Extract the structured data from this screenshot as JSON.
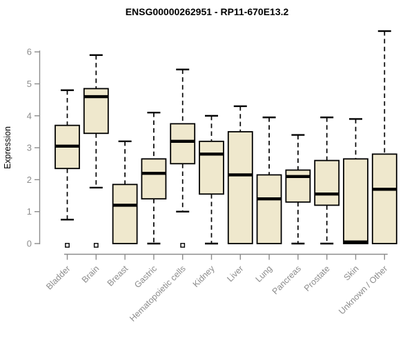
{
  "chart_data": {
    "type": "boxplot",
    "title": "ENSG00000262951 - RP11-670E13.2",
    "ylabel": "Expression",
    "xlabel": "",
    "ylim": [
      0,
      6
    ],
    "yticks": [
      0,
      1,
      2,
      3,
      4,
      5,
      6
    ],
    "grid": false,
    "legend": false,
    "categories": [
      "Bladder",
      "Brain",
      "Breast",
      "Gastric",
      "Hematopoietic cells",
      "Kidney",
      "Liver",
      "Lung",
      "Pancreas",
      "Prostate",
      "Skin",
      "Unknown / Other"
    ],
    "boxes": [
      {
        "category": "Bladder",
        "whisker_low": 0.75,
        "q1": 2.35,
        "median": 3.05,
        "q3": 3.7,
        "whisker_high": 4.8,
        "outliers": [
          0
        ]
      },
      {
        "category": "Brain",
        "whisker_low": 1.75,
        "q1": 3.45,
        "median": 4.6,
        "q3": 4.85,
        "whisker_high": 5.9,
        "outliers": [
          0
        ]
      },
      {
        "category": "Breast",
        "whisker_low": 0,
        "q1": 0,
        "median": 1.2,
        "q3": 1.85,
        "whisker_high": 3.2,
        "outliers": []
      },
      {
        "category": "Gastric",
        "whisker_low": 0,
        "q1": 1.4,
        "median": 2.2,
        "q3": 2.65,
        "whisker_high": 4.1,
        "outliers": []
      },
      {
        "category": "Hematopoietic cells",
        "whisker_low": 1.0,
        "q1": 2.5,
        "median": 3.2,
        "q3": 3.75,
        "whisker_high": 5.45,
        "outliers": [
          0
        ]
      },
      {
        "category": "Kidney",
        "whisker_low": 0,
        "q1": 1.55,
        "median": 2.8,
        "q3": 3.2,
        "whisker_high": 4.0,
        "outliers": []
      },
      {
        "category": "Liver",
        "whisker_low": 0,
        "q1": 0,
        "median": 2.15,
        "q3": 3.5,
        "whisker_high": 4.3,
        "outliers": []
      },
      {
        "category": "Lung",
        "whisker_low": 0,
        "q1": 0,
        "median": 1.4,
        "q3": 2.15,
        "whisker_high": 3.95,
        "outliers": []
      },
      {
        "category": "Pancreas",
        "whisker_low": 0,
        "q1": 1.3,
        "median": 2.1,
        "q3": 2.3,
        "whisker_high": 3.4,
        "outliers": []
      },
      {
        "category": "Prostate",
        "whisker_low": 0,
        "q1": 1.2,
        "median": 1.55,
        "q3": 2.6,
        "whisker_high": 3.95,
        "outliers": []
      },
      {
        "category": "Skin",
        "whisker_low": 0,
        "q1": 0,
        "median": 0.05,
        "q3": 2.65,
        "whisker_high": 3.9,
        "outliers": []
      },
      {
        "category": "Unknown / Other",
        "whisker_low": 0,
        "q1": 0,
        "median": 1.7,
        "q3": 2.8,
        "whisker_high": 6.65,
        "outliers": []
      }
    ],
    "colors": {
      "box_fill": "#EFE8CD",
      "box_stroke": "#000000",
      "median": "#000000",
      "whisker": "#000000",
      "axis": "#8C8C8C",
      "tick_label": "#8C8C8C",
      "title": "#000000",
      "outlier_fill": "#FFFFFF",
      "outlier_stroke": "#000000",
      "background": "#FFFFFF"
    }
  }
}
